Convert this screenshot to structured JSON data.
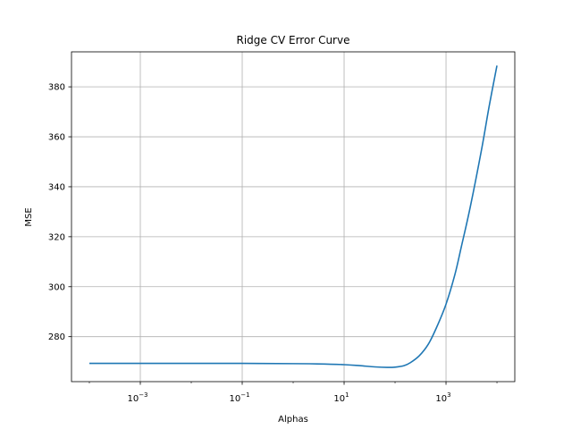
{
  "chart_data": {
    "type": "line",
    "title": "Ridge CV Error Curve",
    "xlabel": "Alphas",
    "ylabel": "MSE",
    "xscale": "log",
    "xlim": [
      4.46e-05,
      22400
    ],
    "ylim": [
      262.0,
      394.0
    ],
    "grid": true,
    "x_ticks": [
      {
        "value": 0.001,
        "base": "10",
        "exp": "−3"
      },
      {
        "value": 0.1,
        "base": "10",
        "exp": "−1"
      },
      {
        "value": 10,
        "base": "10",
        "exp": "1"
      },
      {
        "value": 1000,
        "base": "10",
        "exp": "3"
      }
    ],
    "y_ticks": [
      280,
      300,
      320,
      340,
      360,
      380
    ],
    "series": [
      {
        "color": "#1f77b4",
        "x": [
          0.0001,
          0.001,
          0.01,
          0.1,
          1,
          3,
          10,
          20,
          40,
          70,
          100,
          150,
          200,
          300,
          450,
          650,
          1000,
          1500,
          2000,
          3000,
          5000,
          7000,
          10000
        ],
        "y": [
          269.3,
          269.3,
          269.3,
          269.3,
          269.2,
          269.1,
          268.8,
          268.4,
          267.9,
          267.7,
          267.8,
          268.4,
          269.6,
          272.4,
          277.0,
          283.6,
          293.0,
          305.0,
          316.0,
          332.0,
          355.0,
          372.0,
          388.5
        ]
      }
    ]
  }
}
